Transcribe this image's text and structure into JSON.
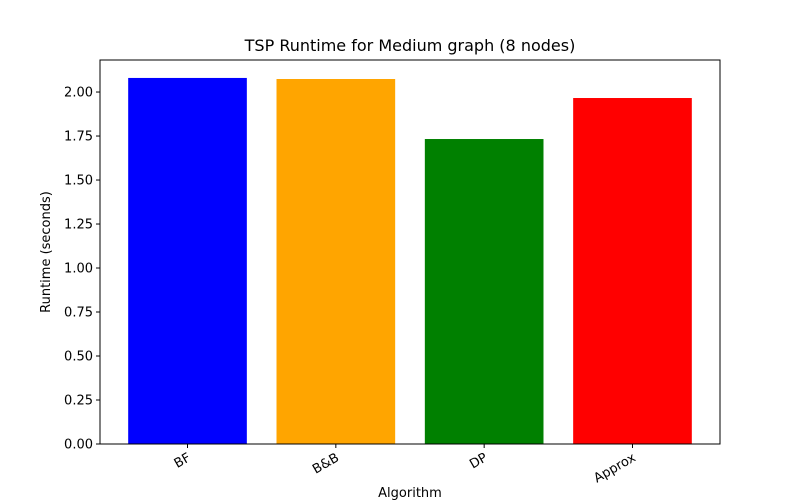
{
  "chart_data": {
    "type": "bar",
    "title": "TSP Runtime for Medium graph (8 nodes)",
    "x_label": "Algorithm",
    "y_label": "Runtime (seconds)",
    "categories": [
      "BF",
      "B&B",
      "DP",
      "Approx"
    ],
    "values": [
      2.08,
      2.074,
      1.733,
      1.966
    ],
    "colors": [
      "#0000ff",
      "#ffa500",
      "#008000",
      "#ff0000"
    ],
    "ylim": [
      0,
      2.182
    ],
    "yticks": [
      {
        "value": 0,
        "label": "0.00"
      },
      {
        "value": 0.25,
        "label": "0.25"
      },
      {
        "value": 0.5,
        "label": "0.50"
      },
      {
        "value": 0.75,
        "label": "0.75"
      },
      {
        "value": 1,
        "label": "1.00"
      },
      {
        "value": 1.25,
        "label": "1.25"
      },
      {
        "value": 1.5,
        "label": "1.50"
      },
      {
        "value": 1.75,
        "label": "1.75"
      },
      {
        "value": 2,
        "label": "2.00"
      }
    ],
    "grid": false
  }
}
